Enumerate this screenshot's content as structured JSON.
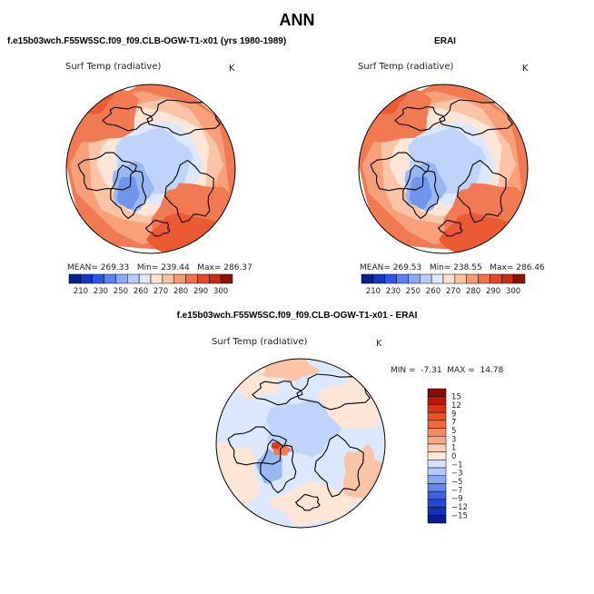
{
  "page": {
    "main_title": "ANN"
  },
  "colors": {
    "warm": [
      "#fde6d6",
      "#fbc4a6",
      "#f7a07a",
      "#f27a52",
      "#ec5a33",
      "#dd3b1e"
    ],
    "cool": [
      "#dbe8ff",
      "#bed4fb",
      "#97b8f3",
      "#6f96eb",
      "#3f62e0",
      "#1a2fcf"
    ],
    "coast": "#000000",
    "land_edge": "#111111"
  },
  "chart_data": [
    {
      "type": "polar_map",
      "name": "model",
      "case_title": "f.e15b03wch.F55W5SC.f09_f09.CLB-OGW-T1-x01 (yrs 1980-1989)",
      "variable": "Surf Temp (radiative)",
      "units": "K",
      "stats_text": "MEAN= 269.33   Min= 239.44   Max= 286.37",
      "stats": {
        "mean": 269.33,
        "min": 239.44,
        "max": 286.37
      },
      "colorbar": {
        "labels": [
          "210",
          "230",
          "250",
          "260",
          "270",
          "280",
          "290",
          "300"
        ],
        "colors": [
          "#08228a",
          "#1536c0",
          "#2b56e8",
          "#5a81f0",
          "#8aa9f5",
          "#b8cbf8",
          "#dfe8fc",
          "#fde2d0",
          "#fbc1a0",
          "#f69a72",
          "#ef7148",
          "#e24b26",
          "#c42f14",
          "#8b1206"
        ]
      }
    },
    {
      "type": "polar_map",
      "name": "obs",
      "case_title": "ERAI",
      "variable": "Surf Temp (radiative)",
      "units": "K",
      "stats_text": "MEAN= 269.53   Min= 238.55   Max= 286.46",
      "stats": {
        "mean": 269.53,
        "min": 238.55,
        "max": 286.46
      },
      "colorbar": {
        "labels": [
          "210",
          "230",
          "250",
          "260",
          "270",
          "280",
          "290",
          "300"
        ],
        "colors": [
          "#08228a",
          "#1536c0",
          "#2b56e8",
          "#5a81f0",
          "#8aa9f5",
          "#b8cbf8",
          "#dfe8fc",
          "#fde2d0",
          "#fbc1a0",
          "#f69a72",
          "#ef7148",
          "#e24b26",
          "#c42f14",
          "#8b1206"
        ]
      }
    },
    {
      "type": "polar_map",
      "name": "diff",
      "case_title": "f.e15b03wch.F55W5SC.f09_f09.CLB-OGW-T1-x01 - ERAI",
      "variable": "Surf Temp (radiative)",
      "units": "K",
      "stats_text": "MIN =  -7.31  MAX =  14.78",
      "stats": {
        "min": -7.31,
        "max": 14.78
      },
      "colorbar": {
        "labels": [
          "15",
          "12",
          "9",
          "7",
          "5",
          "3",
          "1",
          "0",
          "−1",
          "−3",
          "−5",
          "−7",
          "−9",
          "−12",
          "−15"
        ],
        "colors": [
          "#8c0a03",
          "#b8190a",
          "#d8351a",
          "#ea5128",
          "#f26a3c",
          "#f68a62",
          "#f9ab88",
          "#fccfb4",
          "#fde9da",
          "#d6e3fb",
          "#b3c9f7",
          "#8aa8f1",
          "#6586ea",
          "#3f62e0",
          "#2446d2",
          "#1530b8",
          "#0a1c95"
        ]
      }
    }
  ]
}
